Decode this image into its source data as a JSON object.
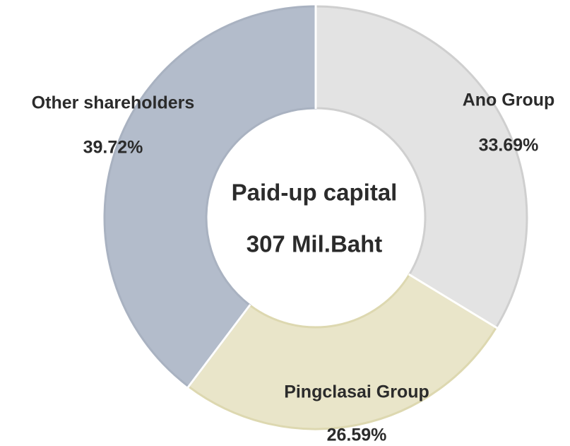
{
  "chart_data": {
    "type": "pie",
    "donut": true,
    "center_text": [
      "Paid-up capital",
      "307 Mil.Baht"
    ],
    "categories": [
      "Ano Group",
      "Pingclasai Group",
      "Other shareholders"
    ],
    "values": [
      33.69,
      26.59,
      39.72
    ],
    "value_labels": [
      "33.69%",
      "26.59%",
      "39.72%"
    ],
    "colors": [
      "#e3e3e3",
      "#e9e5c9",
      "#b3bccb"
    ]
  }
}
